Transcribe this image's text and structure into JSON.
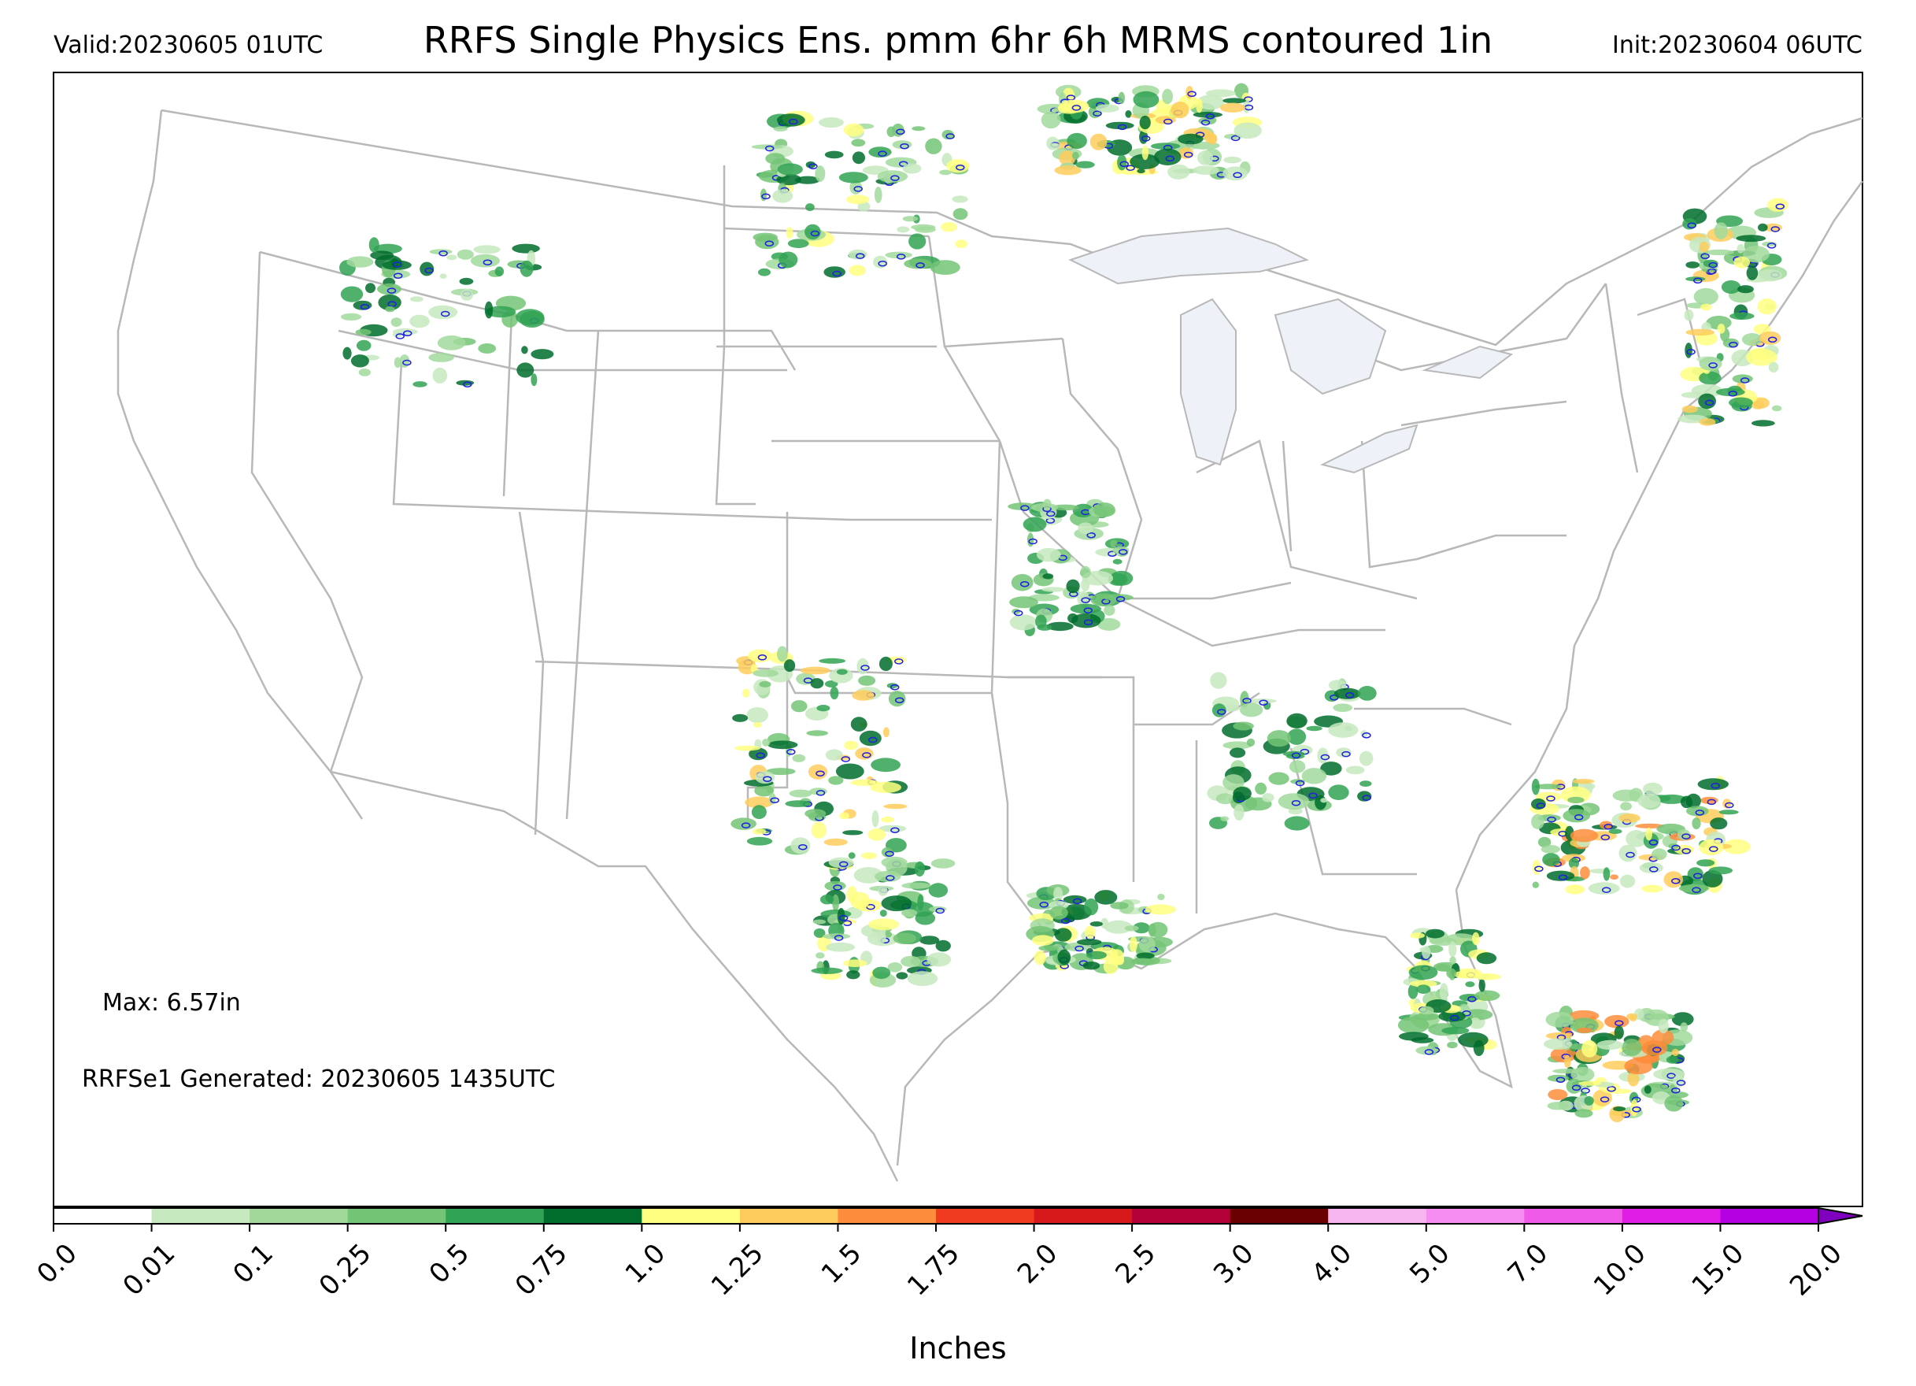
{
  "header": {
    "valid": "Valid:20230605 01UTC",
    "title": "RRFS Single Physics Ens. pmm 6hr 6h MRMS contoured 1in",
    "init": "Init:20230604 06UTC"
  },
  "annotations": {
    "max": "Max: 6.57in",
    "generated": "RRFSe1 Generated: 20230605 1435UTC"
  },
  "colorbar": {
    "unit": "Inches",
    "ticks": [
      "0.0",
      "0.01",
      "0.1",
      "0.25",
      "0.5",
      "0.75",
      "1.0",
      "1.25",
      "1.5",
      "1.75",
      "2.0",
      "2.5",
      "3.0",
      "4.0",
      "5.0",
      "7.0",
      "10.0",
      "15.0",
      "20.0"
    ],
    "colors": [
      "#ffffff",
      "#c7e9c0",
      "#a1d99b",
      "#74c476",
      "#31a354",
      "#006d2c",
      "#ffff80",
      "#fecc5c",
      "#fd8d3c",
      "#f03b20",
      "#d7191c",
      "#b30037",
      "#6b0000",
      "#f7b6f0",
      "#f58ef0",
      "#f05ae8",
      "#e01de6",
      "#b400e0",
      "#8000c0"
    ]
  },
  "map_colors": {
    "boundary": "#b8b8b8",
    "lakes": "#eef2f8",
    "contour": "#2020e0"
  },
  "precip_clusters": [
    {
      "region": "north-dakota-minnesota",
      "intensity": 3
    },
    {
      "region": "ontario-border",
      "intensity": 4
    },
    {
      "region": "west-texas-new-mexico",
      "intensity": 4
    },
    {
      "region": "texas-gulf-coast",
      "intensity": 3
    },
    {
      "region": "louisiana",
      "intensity": 3
    },
    {
      "region": "southeast",
      "intensity": 2
    },
    {
      "region": "florida",
      "intensity": 3
    },
    {
      "region": "atlantic-offshore",
      "intensity": 5
    },
    {
      "region": "bahamas",
      "intensity": 5
    },
    {
      "region": "new-england-offshore",
      "intensity": 4
    },
    {
      "region": "idaho-montana",
      "intensity": 2
    },
    {
      "region": "iowa-missouri",
      "intensity": 2
    }
  ]
}
